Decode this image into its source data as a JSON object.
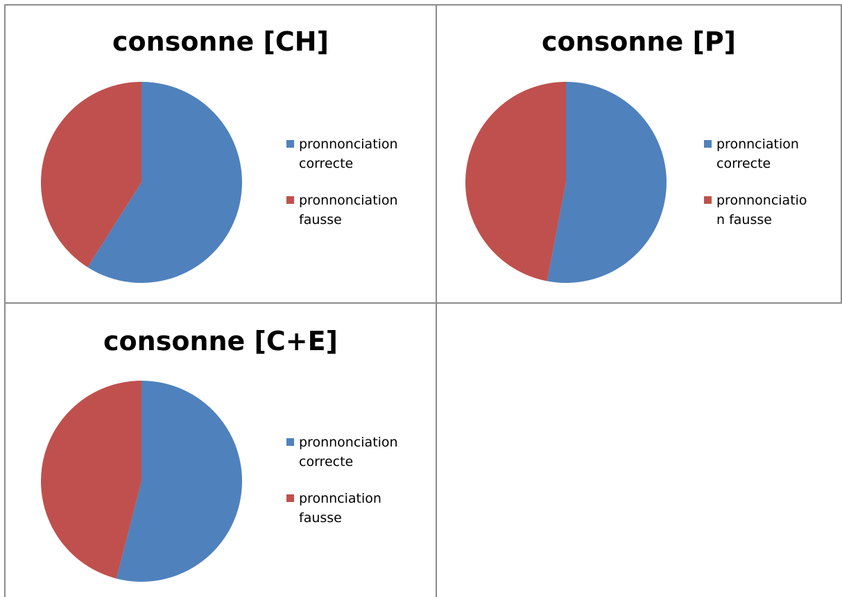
{
  "chart_data": [
    {
      "type": "pie",
      "title": "consonne [CH]",
      "slices": [
        {
          "label": "pronnonciation correcte",
          "value": 59,
          "color": "#4f81bd"
        },
        {
          "label": "pronnonciation fausse",
          "value": 41,
          "color": "#c0504d"
        }
      ],
      "legend_lines": [
        [
          "pronnonciation",
          "correcte"
        ],
        [
          "pronnonciation",
          "fausse"
        ]
      ],
      "legend_position": "right"
    },
    {
      "type": "pie",
      "title": "consonne [P]",
      "slices": [
        {
          "label": "pronnciation correcte",
          "value": 53,
          "color": "#4f81bd"
        },
        {
          "label": "pronnonciation fausse",
          "value": 47,
          "color": "#c0504d"
        }
      ],
      "legend_lines": [
        [
          "pronnciation",
          "correcte"
        ],
        [
          "pronnonciatio",
          "n fausse"
        ]
      ],
      "legend_position": "right"
    },
    {
      "type": "pie",
      "title": "consonne [C+E]",
      "slices": [
        {
          "label": "pronnonciation correcte",
          "value": 54,
          "color": "#4f81bd"
        },
        {
          "label": "pronnciation fausse",
          "value": 46,
          "color": "#c0504d"
        }
      ],
      "legend_lines": [
        [
          "pronnonciation",
          "correcte"
        ],
        [
          "pronnciation",
          "fausse"
        ]
      ],
      "legend_position": "right"
    }
  ]
}
